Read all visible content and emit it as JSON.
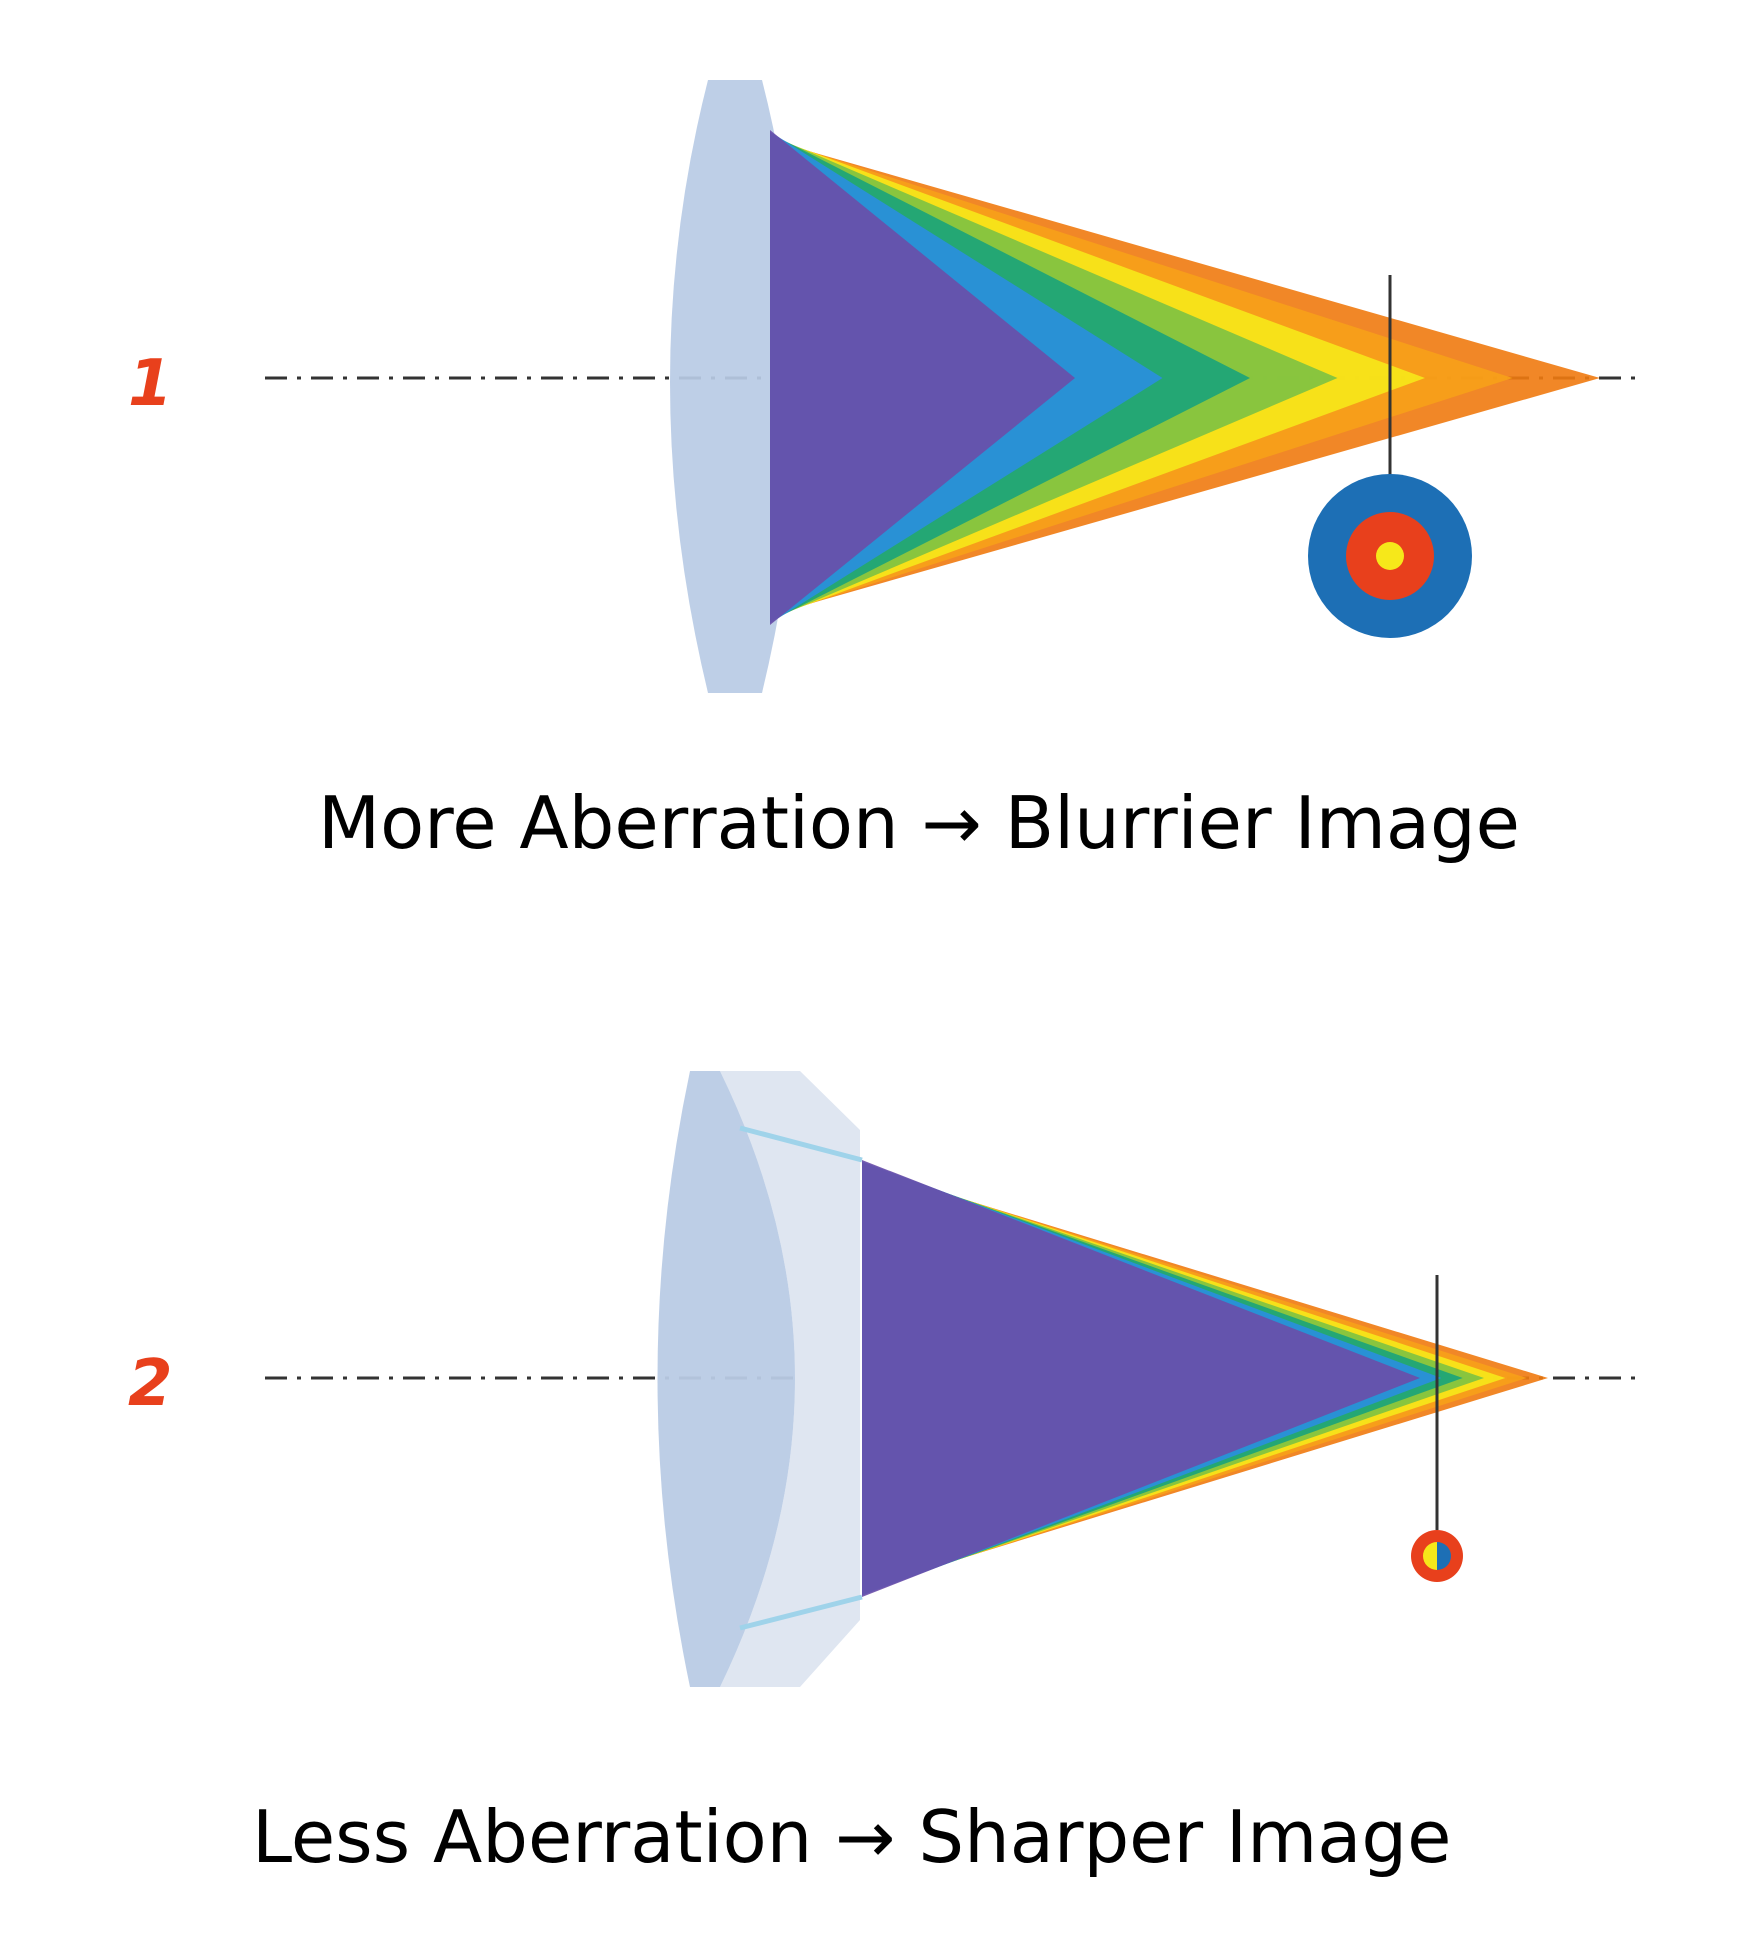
{
  "colors": {
    "number": "#e8401c",
    "lens": "#b9cbe5",
    "lens_flat": "#dfe6f1",
    "axis": "#333333",
    "disc_outer": "#1d6fb5",
    "disc_middle": "#e8401c",
    "disc_inner": "#f6e81a",
    "spectrum": [
      "#6a4ea8",
      "#2a8fe0",
      "#1aa37a",
      "#7cc242",
      "#f6e81a",
      "#f7a11a",
      "#f07a10"
    ]
  },
  "diagram_1": {
    "number": "1",
    "caption": "More Aberration → Blurrier Image",
    "image_spot": "large-blur-circle"
  },
  "diagram_2": {
    "number": "2",
    "caption": "Less Aberration → Sharper Image",
    "image_spot": "small-blur-circle"
  }
}
